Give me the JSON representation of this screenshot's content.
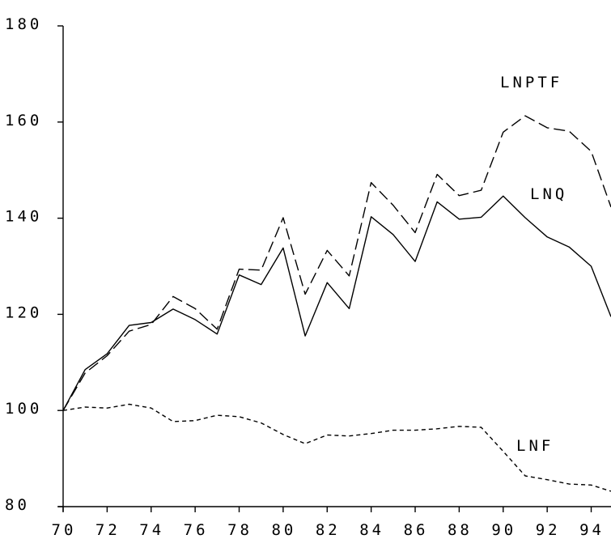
{
  "chart_data": {
    "type": "line",
    "title": "",
    "xlabel": "",
    "ylabel": "",
    "xlim": [
      70,
      94.9
    ],
    "ylim": [
      80,
      180
    ],
    "x_ticks": [
      70,
      72,
      74,
      76,
      78,
      80,
      82,
      84,
      86,
      88,
      90,
      92,
      94
    ],
    "x_tick_labels": [
      "70",
      "72",
      "74",
      "76",
      "78",
      "80",
      "82",
      "84",
      "86",
      "88",
      "90",
      "92",
      "94"
    ],
    "y_ticks": [
      80,
      100,
      120,
      140,
      160,
      180
    ],
    "y_tick_labels": [
      "80",
      "100",
      "120",
      "140",
      "160",
      "180"
    ],
    "grid": false,
    "legend": "none",
    "x": [
      70,
      71,
      72,
      73,
      74,
      75,
      76,
      77,
      78,
      79,
      80,
      81,
      82,
      83,
      84,
      85,
      86,
      87,
      88,
      89,
      90,
      91,
      92,
      93,
      94,
      94.9
    ],
    "series": [
      {
        "name": "LNPTF",
        "style": "long-dash",
        "color": "#000000",
        "values": [
          100,
          107.8,
          111.4,
          116.5,
          117.9,
          123.7,
          121.2,
          116.9,
          129.4,
          129.2,
          140.1,
          124.2,
          133.3,
          128.0,
          147.4,
          142.7,
          137.0,
          149.1,
          144.7,
          145.8,
          157.9,
          161.3,
          158.8,
          158.1,
          153.9,
          142.3
        ]
      },
      {
        "name": "LNQ",
        "style": "solid",
        "color": "#000000",
        "values": [
          100,
          108.5,
          111.8,
          117.7,
          118.3,
          121.1,
          118.9,
          115.9,
          128.2,
          126.2,
          133.8,
          115.5,
          126.6,
          121.2,
          140.3,
          136.6,
          131.0,
          143.4,
          139.8,
          140.2,
          144.6,
          140.1,
          136.1,
          134.0,
          130.0,
          119.5
        ]
      },
      {
        "name": "LNF",
        "style": "short-dash",
        "color": "#000000",
        "values": [
          100,
          100.7,
          100.5,
          101.3,
          100.5,
          97.7,
          97.9,
          99.0,
          98.7,
          97.4,
          95.0,
          93.1,
          94.9,
          94.7,
          95.2,
          95.9,
          95.9,
          96.2,
          96.7,
          96.5,
          91.5,
          86.4,
          85.6,
          84.7,
          84.5,
          83.2
        ]
      }
    ]
  }
}
